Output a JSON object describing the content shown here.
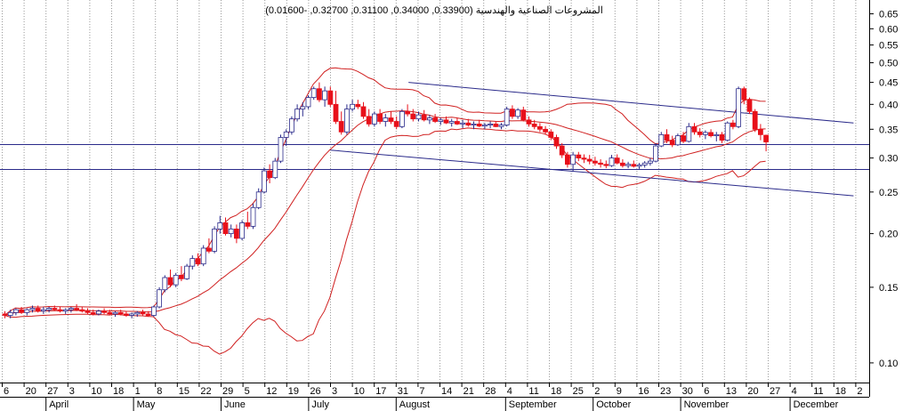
{
  "chart_data": {
    "type": "candlestick",
    "title": "المشروعات الصناعية والهندسية (0.33900, 0.34000, 0.31100, 0.32700, -0.01600)",
    "last_ohlc": {
      "open": 0.339,
      "high": 0.34,
      "low": 0.311,
      "close": 0.327,
      "change": -0.016
    },
    "y_scale": "log",
    "ylim": [
      0.09,
      0.7
    ],
    "y_ticks": [
      "0.65",
      "0.60",
      "0.55",
      "0.50",
      "0.45",
      "0.40",
      "0.35",
      "0.30",
      "0.25",
      "0.20",
      "0.15",
      "0.10"
    ],
    "x_day_ticks": [
      "6",
      "20",
      "27",
      "3",
      "10",
      "18",
      "1",
      "8",
      "15",
      "22",
      "29",
      "5",
      "12",
      "19",
      "26",
      "3",
      "10",
      "17",
      "31",
      "7",
      "14",
      "21",
      "28",
      "4",
      "11",
      "18",
      "25",
      "2",
      "9",
      "16",
      "23",
      "30",
      "6",
      "13",
      "20",
      "27",
      "4",
      "11",
      "18",
      "2"
    ],
    "x_months": [
      "April",
      "May",
      "June",
      "July",
      "August",
      "September",
      "October",
      "November",
      "December"
    ],
    "horizontal_levels": [
      0.323,
      0.283
    ],
    "channel_upper": [
      [
        0.45,
        0.47
      ],
      [
        0.362,
        0.982
      ]
    ],
    "channel_lower": [
      [
        0.313,
        0.38
      ],
      [
        0.245,
        0.982
      ]
    ],
    "grid": "vertical dotted",
    "colors": {
      "up": "#ffffff",
      "down": "#e8101a",
      "highlight": "#1830d0",
      "bands": "#d02020",
      "lines": "#2a2a8a"
    },
    "candles": [
      [
        0.13,
        0.132,
        0.127,
        0.129
      ],
      [
        0.129,
        0.133,
        0.127,
        0.131
      ],
      [
        0.131,
        0.134,
        0.129,
        0.133
      ],
      [
        0.133,
        0.135,
        0.13,
        0.131
      ],
      [
        0.131,
        0.134,
        0.129,
        0.133
      ],
      [
        0.133,
        0.136,
        0.131,
        0.134
      ],
      [
        0.134,
        0.136,
        0.131,
        0.132
      ],
      [
        0.132,
        0.135,
        0.13,
        0.133
      ],
      [
        0.133,
        0.135,
        0.131,
        0.134
      ],
      [
        0.134,
        0.136,
        0.132,
        0.133
      ],
      [
        0.133,
        0.135,
        0.131,
        0.132
      ],
      [
        0.132,
        0.134,
        0.13,
        0.133
      ],
      [
        0.133,
        0.135,
        0.131,
        0.134
      ],
      [
        0.134,
        0.137,
        0.132,
        0.133
      ],
      [
        0.133,
        0.135,
        0.131,
        0.132
      ],
      [
        0.132,
        0.134,
        0.13,
        0.131
      ],
      [
        0.131,
        0.133,
        0.129,
        0.13
      ],
      [
        0.13,
        0.133,
        0.129,
        0.132
      ],
      [
        0.132,
        0.134,
        0.13,
        0.131
      ],
      [
        0.131,
        0.133,
        0.129,
        0.13
      ],
      [
        0.13,
        0.132,
        0.128,
        0.131
      ],
      [
        0.131,
        0.133,
        0.129,
        0.13
      ],
      [
        0.13,
        0.132,
        0.128,
        0.129
      ],
      [
        0.129,
        0.131,
        0.127,
        0.13
      ],
      [
        0.13,
        0.132,
        0.128,
        0.131
      ],
      [
        0.131,
        0.133,
        0.129,
        0.13
      ],
      [
        0.13,
        0.132,
        0.128,
        0.129
      ],
      [
        0.129,
        0.136,
        0.128,
        0.135
      ],
      [
        0.135,
        0.15,
        0.134,
        0.148
      ],
      [
        0.148,
        0.16,
        0.146,
        0.158
      ],
      [
        0.158,
        0.165,
        0.15,
        0.152
      ],
      [
        0.152,
        0.162,
        0.15,
        0.16
      ],
      [
        0.16,
        0.168,
        0.155,
        0.157
      ],
      [
        0.157,
        0.17,
        0.156,
        0.168
      ],
      [
        0.168,
        0.178,
        0.165,
        0.175
      ],
      [
        0.175,
        0.18,
        0.168,
        0.17
      ],
      [
        0.17,
        0.188,
        0.168,
        0.185
      ],
      [
        0.185,
        0.195,
        0.18,
        0.182
      ],
      [
        0.182,
        0.208,
        0.18,
        0.205
      ],
      [
        0.205,
        0.22,
        0.2,
        0.212
      ],
      [
        0.212,
        0.218,
        0.198,
        0.2
      ],
      [
        0.2,
        0.21,
        0.196,
        0.205
      ],
      [
        0.205,
        0.21,
        0.19,
        0.195
      ],
      [
        0.195,
        0.215,
        0.193,
        0.212
      ],
      [
        0.212,
        0.225,
        0.205,
        0.208
      ],
      [
        0.208,
        0.235,
        0.205,
        0.23
      ],
      [
        0.23,
        0.255,
        0.228,
        0.25
      ],
      [
        0.25,
        0.285,
        0.248,
        0.28
      ],
      [
        0.28,
        0.29,
        0.262,
        0.27
      ],
      [
        0.27,
        0.3,
        0.268,
        0.295
      ],
      [
        0.295,
        0.34,
        0.292,
        0.335
      ],
      [
        0.335,
        0.35,
        0.32,
        0.345
      ],
      [
        0.345,
        0.375,
        0.34,
        0.37
      ],
      [
        0.37,
        0.4,
        0.365,
        0.39
      ],
      [
        0.39,
        0.405,
        0.375,
        0.395
      ],
      [
        0.395,
        0.42,
        0.39,
        0.415
      ],
      [
        0.415,
        0.44,
        0.41,
        0.435
      ],
      [
        0.435,
        0.45,
        0.405,
        0.41
      ],
      [
        0.41,
        0.44,
        0.395,
        0.43
      ],
      [
        0.43,
        0.44,
        0.395,
        0.4
      ],
      [
        0.4,
        0.43,
        0.36,
        0.365
      ],
      [
        0.365,
        0.385,
        0.34,
        0.345
      ],
      [
        0.345,
        0.4,
        0.34,
        0.39
      ],
      [
        0.39,
        0.41,
        0.385,
        0.4
      ],
      [
        0.4,
        0.41,
        0.39,
        0.395
      ],
      [
        0.395,
        0.405,
        0.37,
        0.375
      ],
      [
        0.375,
        0.39,
        0.355,
        0.36
      ],
      [
        0.36,
        0.385,
        0.355,
        0.38
      ],
      [
        0.38,
        0.39,
        0.36,
        0.365
      ],
      [
        0.365,
        0.38,
        0.355,
        0.372
      ],
      [
        0.372,
        0.385,
        0.36,
        0.365
      ],
      [
        0.365,
        0.375,
        0.35,
        0.355
      ],
      [
        0.355,
        0.39,
        0.352,
        0.385
      ],
      [
        0.385,
        0.4,
        0.375,
        0.38
      ],
      [
        0.38,
        0.39,
        0.365,
        0.37
      ],
      [
        0.37,
        0.385,
        0.365,
        0.378
      ],
      [
        0.378,
        0.388,
        0.365,
        0.368
      ],
      [
        0.368,
        0.378,
        0.36,
        0.372
      ],
      [
        0.372,
        0.38,
        0.362,
        0.365
      ],
      [
        0.365,
        0.372,
        0.358,
        0.368
      ],
      [
        0.368,
        0.375,
        0.36,
        0.362
      ],
      [
        0.362,
        0.37,
        0.355,
        0.365
      ],
      [
        0.365,
        0.372,
        0.358,
        0.36
      ],
      [
        0.36,
        0.368,
        0.352,
        0.362
      ],
      [
        0.362,
        0.37,
        0.355,
        0.358
      ],
      [
        0.358,
        0.365,
        0.35,
        0.36
      ],
      [
        0.36,
        0.368,
        0.354,
        0.356
      ],
      [
        0.356,
        0.362,
        0.35,
        0.358
      ],
      [
        0.358,
        0.365,
        0.352,
        0.36
      ],
      [
        0.36,
        0.366,
        0.354,
        0.355
      ],
      [
        0.355,
        0.362,
        0.35,
        0.358
      ],
      [
        0.358,
        0.395,
        0.355,
        0.39
      ],
      [
        0.39,
        0.398,
        0.37,
        0.375
      ],
      [
        0.375,
        0.392,
        0.37,
        0.388
      ],
      [
        0.388,
        0.395,
        0.365,
        0.368
      ],
      [
        0.368,
        0.375,
        0.355,
        0.36
      ],
      [
        0.36,
        0.368,
        0.35,
        0.355
      ],
      [
        0.355,
        0.362,
        0.345,
        0.35
      ],
      [
        0.35,
        0.356,
        0.34,
        0.345
      ],
      [
        0.345,
        0.35,
        0.33,
        0.335
      ],
      [
        0.335,
        0.34,
        0.315,
        0.32
      ],
      [
        0.32,
        0.325,
        0.3,
        0.305
      ],
      [
        0.305,
        0.31,
        0.285,
        0.29
      ],
      [
        0.29,
        0.31,
        0.28,
        0.305
      ],
      [
        0.305,
        0.31,
        0.295,
        0.3
      ],
      [
        0.3,
        0.306,
        0.292,
        0.298
      ],
      [
        0.298,
        0.305,
        0.29,
        0.295
      ],
      [
        0.295,
        0.302,
        0.288,
        0.292
      ],
      [
        0.292,
        0.298,
        0.285,
        0.29
      ],
      [
        0.29,
        0.296,
        0.284,
        0.288
      ],
      [
        0.288,
        0.305,
        0.286,
        0.3
      ],
      [
        0.3,
        0.306,
        0.29,
        0.292
      ],
      [
        0.292,
        0.298,
        0.285,
        0.288
      ],
      [
        0.288,
        0.294,
        0.284,
        0.29
      ],
      [
        0.29,
        0.296,
        0.285,
        0.287
      ],
      [
        0.287,
        0.292,
        0.283,
        0.289
      ],
      [
        0.289,
        0.295,
        0.285,
        0.292
      ],
      [
        0.292,
        0.3,
        0.288,
        0.295
      ],
      [
        0.295,
        0.325,
        0.293,
        0.32
      ],
      [
        0.32,
        0.345,
        0.318,
        0.34
      ],
      [
        0.34,
        0.35,
        0.325,
        0.33
      ],
      [
        0.33,
        0.338,
        0.318,
        0.322
      ],
      [
        0.322,
        0.342,
        0.32,
        0.338
      ],
      [
        0.338,
        0.345,
        0.325,
        0.328
      ],
      [
        0.328,
        0.362,
        0.326,
        0.355
      ],
      [
        0.355,
        0.362,
        0.34,
        0.345
      ],
      [
        0.345,
        0.352,
        0.335,
        0.34
      ],
      [
        0.34,
        0.348,
        0.332,
        0.344
      ],
      [
        0.344,
        0.35,
        0.335,
        0.338
      ],
      [
        0.338,
        0.345,
        0.328,
        0.34
      ],
      [
        0.34,
        0.345,
        0.325,
        0.33
      ],
      [
        0.33,
        0.365,
        0.328,
        0.362
      ],
      [
        0.362,
        0.368,
        0.35,
        0.355
      ],
      [
        0.355,
        0.44,
        0.352,
        0.435
      ],
      [
        0.435,
        0.44,
        0.4,
        0.41
      ],
      [
        0.41,
        0.415,
        0.38,
        0.385
      ],
      [
        0.385,
        0.39,
        0.345,
        0.35
      ],
      [
        0.35,
        0.36,
        0.33,
        0.34
      ],
      [
        0.339,
        0.34,
        0.311,
        0.327
      ]
    ]
  }
}
